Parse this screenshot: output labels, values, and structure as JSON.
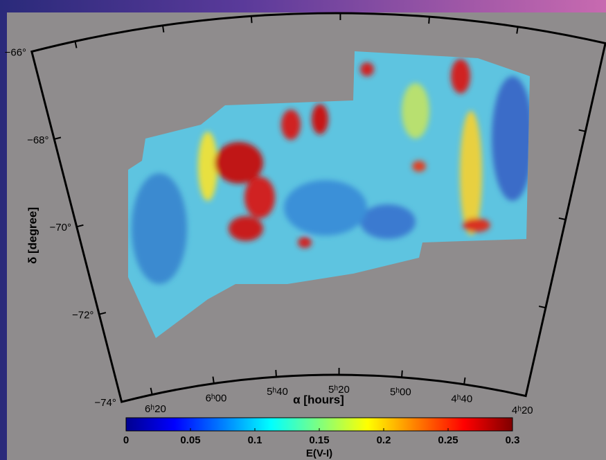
{
  "chart_data": {
    "type": "map",
    "x_label": "α [hours]",
    "y_label": "δ [degree]",
    "xlim": [
      6.5,
      4.3333
    ],
    "ylim": [
      -74,
      -66
    ],
    "xticks": [
      {
        "value": 6.3333,
        "label": "6ʰ20"
      },
      {
        "value": 6.0,
        "label": "6ʰ00"
      },
      {
        "value": 5.6667,
        "label": "5ʰ40"
      },
      {
        "value": 5.3333,
        "label": "5ʰ20"
      },
      {
        "value": 5.0,
        "label": "5ʰ00"
      },
      {
        "value": 4.6667,
        "label": "4ʰ40"
      },
      {
        "value": 4.3333,
        "label": "4ʰ20"
      }
    ],
    "yticks": [
      {
        "value": -66,
        "label": "−66°"
      },
      {
        "value": -68,
        "label": "−68°"
      },
      {
        "value": -70,
        "label": "−70°"
      },
      {
        "value": -72,
        "label": "−72°"
      },
      {
        "value": -74,
        "label": "−74°"
      }
    ],
    "colormap": "jet",
    "colorbar_label": "E(V-I)",
    "colorbar_lim": [
      0,
      0.3
    ],
    "colorbar_ticks": [
      0,
      0.05,
      0.1,
      0.15,
      0.2,
      0.25,
      0.3
    ]
  }
}
